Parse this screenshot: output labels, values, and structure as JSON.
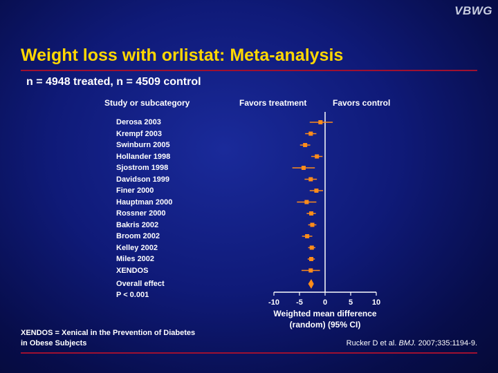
{
  "logo": "VBWG",
  "title": "Weight loss with orlistat: Meta-analysis",
  "subtitle": "n = 4948 treated, n = 4509 control",
  "headers": {
    "study": "Study or subcategory",
    "favors_treatment": "Favors treatment",
    "favors_control": "Favors control"
  },
  "overall_label": "Overall effect",
  "p_value": "P < 0.001",
  "footnote": "XENDOS = Xenical in the Prevention of Diabetes in Obese Subjects",
  "citation": {
    "prefix": "Rucker D et al. ",
    "journal": "BMJ.",
    "suffix": " 2007;335:1194-9."
  },
  "colors": {
    "marker": "#ff8c1a",
    "title": "#ffd700",
    "rule": "#a01030"
  },
  "chart_data": {
    "type": "forest",
    "xlabel_line1": "Weighted mean difference",
    "xlabel_line2": "(random) (95% CI)",
    "xlim": [
      -10,
      10
    ],
    "xticks": [
      -10,
      -5,
      0,
      5,
      10
    ],
    "studies": [
      {
        "name": "Derosa 2003",
        "estimate": -0.9,
        "lower": -3.0,
        "upper": 1.5
      },
      {
        "name": "Krempf 2003",
        "estimate": -2.8,
        "lower": -3.9,
        "upper": -1.7
      },
      {
        "name": "Swinburn 2005",
        "estimate": -3.9,
        "lower": -4.9,
        "upper": -2.9
      },
      {
        "name": "Hollander 1998",
        "estimate": -1.6,
        "lower": -2.7,
        "upper": -0.5
      },
      {
        "name": "Sjostrom 1998",
        "estimate": -4.2,
        "lower": -6.4,
        "upper": -2.0
      },
      {
        "name": "Davidson 1999",
        "estimate": -2.8,
        "lower": -4.0,
        "upper": -1.6
      },
      {
        "name": "Finer 2000",
        "estimate": -1.7,
        "lower": -3.0,
        "upper": -0.4
      },
      {
        "name": "Hauptman 2000",
        "estimate": -3.6,
        "lower": -5.5,
        "upper": -1.7
      },
      {
        "name": "Rossner 2000",
        "estimate": -2.7,
        "lower": -3.6,
        "upper": -1.8
      },
      {
        "name": "Bakris 2002",
        "estimate": -2.5,
        "lower": -3.3,
        "upper": -1.7
      },
      {
        "name": "Broom 2002",
        "estimate": -3.5,
        "lower": -4.5,
        "upper": -2.5
      },
      {
        "name": "Kelley 2002",
        "estimate": -2.6,
        "lower": -3.3,
        "upper": -1.9
      },
      {
        "name": "Miles 2002",
        "estimate": -2.7,
        "lower": -3.4,
        "upper": -2.0
      },
      {
        "name": "XENDOS",
        "estimate": -2.8,
        "lower": -4.6,
        "upper": -1.0
      }
    ],
    "overall": {
      "estimate": -2.7,
      "lower": -3.3,
      "upper": -2.2
    }
  }
}
